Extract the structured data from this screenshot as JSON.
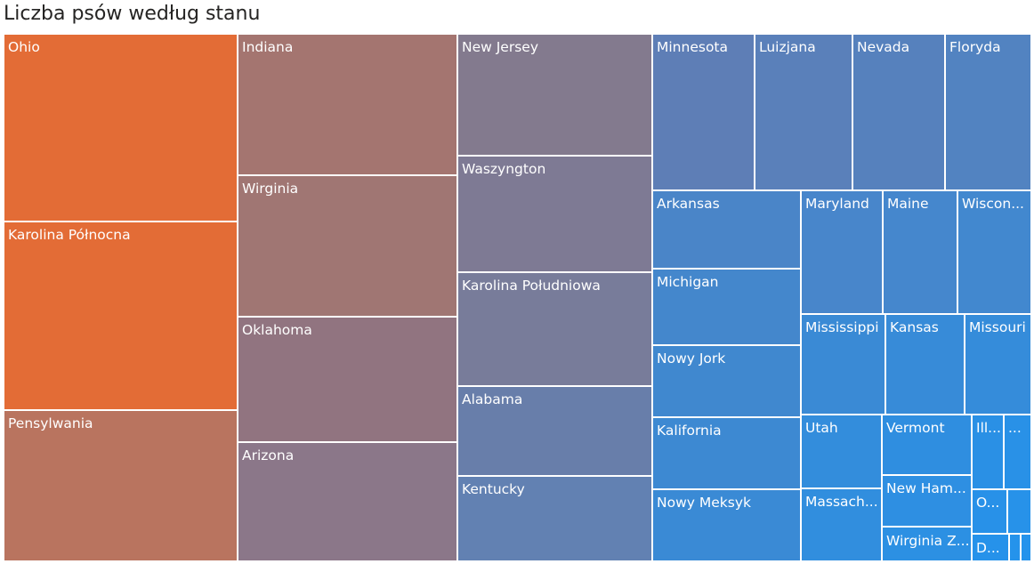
{
  "title": "Liczba psów według stanu",
  "chart_data": {
    "type": "treemap",
    "title": "Liczba psów według stanu",
    "leaves": [
      {
        "label": "Ohio",
        "display": "Ohio",
        "color": "#E36C36"
      },
      {
        "label": "Karolina Północna",
        "display": "Karolina Północna",
        "color": "#E36C36"
      },
      {
        "label": "Pensylwania",
        "display": "Pensylwania",
        "color": "#B9745F"
      },
      {
        "label": "Indiana",
        "display": "Indiana",
        "color": "#A47570"
      },
      {
        "label": "Wirginia",
        "display": "Wirginia",
        "color": "#A07673"
      },
      {
        "label": "Oklahoma",
        "display": "Oklahoma",
        "color": "#917480"
      },
      {
        "label": "Arizona",
        "display": "Arizona",
        "color": "#8B7789"
      },
      {
        "label": "New Jersey",
        "display": "New Jersey",
        "color": "#837A8E"
      },
      {
        "label": "Waszyngton",
        "display": "Waszyngton",
        "color": "#7E7A94"
      },
      {
        "label": "Karolina Południowa",
        "display": "Karolina Południowa",
        "color": "#787C9A"
      },
      {
        "label": "Alabama",
        "display": "Alabama",
        "color": "#687EAA"
      },
      {
        "label": "Kentucky",
        "display": "Kentucky",
        "color": "#6281B2"
      },
      {
        "label": "Minnesota",
        "display": "Minnesota",
        "color": "#5E7EB6"
      },
      {
        "label": "Luizjana",
        "display": "Luizjana",
        "color": "#5A80BA"
      },
      {
        "label": "Nevada",
        "display": "Nevada",
        "color": "#5681BD"
      },
      {
        "label": "Floryda",
        "display": "Floryda",
        "color": "#5283C1"
      },
      {
        "label": "Arkansas",
        "display": "Arkansas",
        "color": "#4A85C8"
      },
      {
        "label": "Maryland",
        "display": "Maryland",
        "color": "#4886CB"
      },
      {
        "label": "Maine",
        "display": "Maine",
        "color": "#4587CD"
      },
      {
        "label": "Wisconsin",
        "display": "Wiscon...",
        "color": "#4288CF"
      },
      {
        "label": "Michigan",
        "display": "Michigan",
        "color": "#4487CC"
      },
      {
        "label": "Nowy Jork",
        "display": "Nowy Jork",
        "color": "#4088CF"
      },
      {
        "label": "Kalifornia",
        "display": "Kalifornia",
        "color": "#3D89D2"
      },
      {
        "label": "Nowy Meksyk",
        "display": "Nowy Meksyk",
        "color": "#3A8AD5"
      },
      {
        "label": "Mississippi",
        "display": "Mississippi",
        "color": "#3A8AD5"
      },
      {
        "label": "Kansas",
        "display": "Kansas",
        "color": "#378BD8"
      },
      {
        "label": "Missouri",
        "display": "Missouri",
        "color": "#358CDA"
      },
      {
        "label": "Utah",
        "display": "Utah",
        "color": "#338DDC"
      },
      {
        "label": "Massachusetts",
        "display": "Massach...",
        "color": "#318EDE"
      },
      {
        "label": "Vermont",
        "display": "Vermont",
        "color": "#2F8EE0"
      },
      {
        "label": "New Hampshire",
        "display": "New Ham...",
        "color": "#2E8FE2"
      },
      {
        "label": "Wirginia Zachodnia",
        "display": "Wirginia Z...",
        "color": "#2C90E3"
      },
      {
        "label": "Illinois",
        "display": "Ill...",
        "color": "#2A90E5"
      },
      {
        "label": "",
        "display": "...",
        "color": "#2991E7"
      },
      {
        "label": "O...",
        "display": "O...",
        "color": "#2891E8"
      },
      {
        "label": "",
        "display": "",
        "color": "#2792E9"
      },
      {
        "label": "D...",
        "display": "D...",
        "color": "#2692EA"
      },
      {
        "label": "",
        "display": "",
        "color": "#2593EB"
      },
      {
        "label": "",
        "display": "",
        "color": "#2493EC"
      }
    ]
  }
}
